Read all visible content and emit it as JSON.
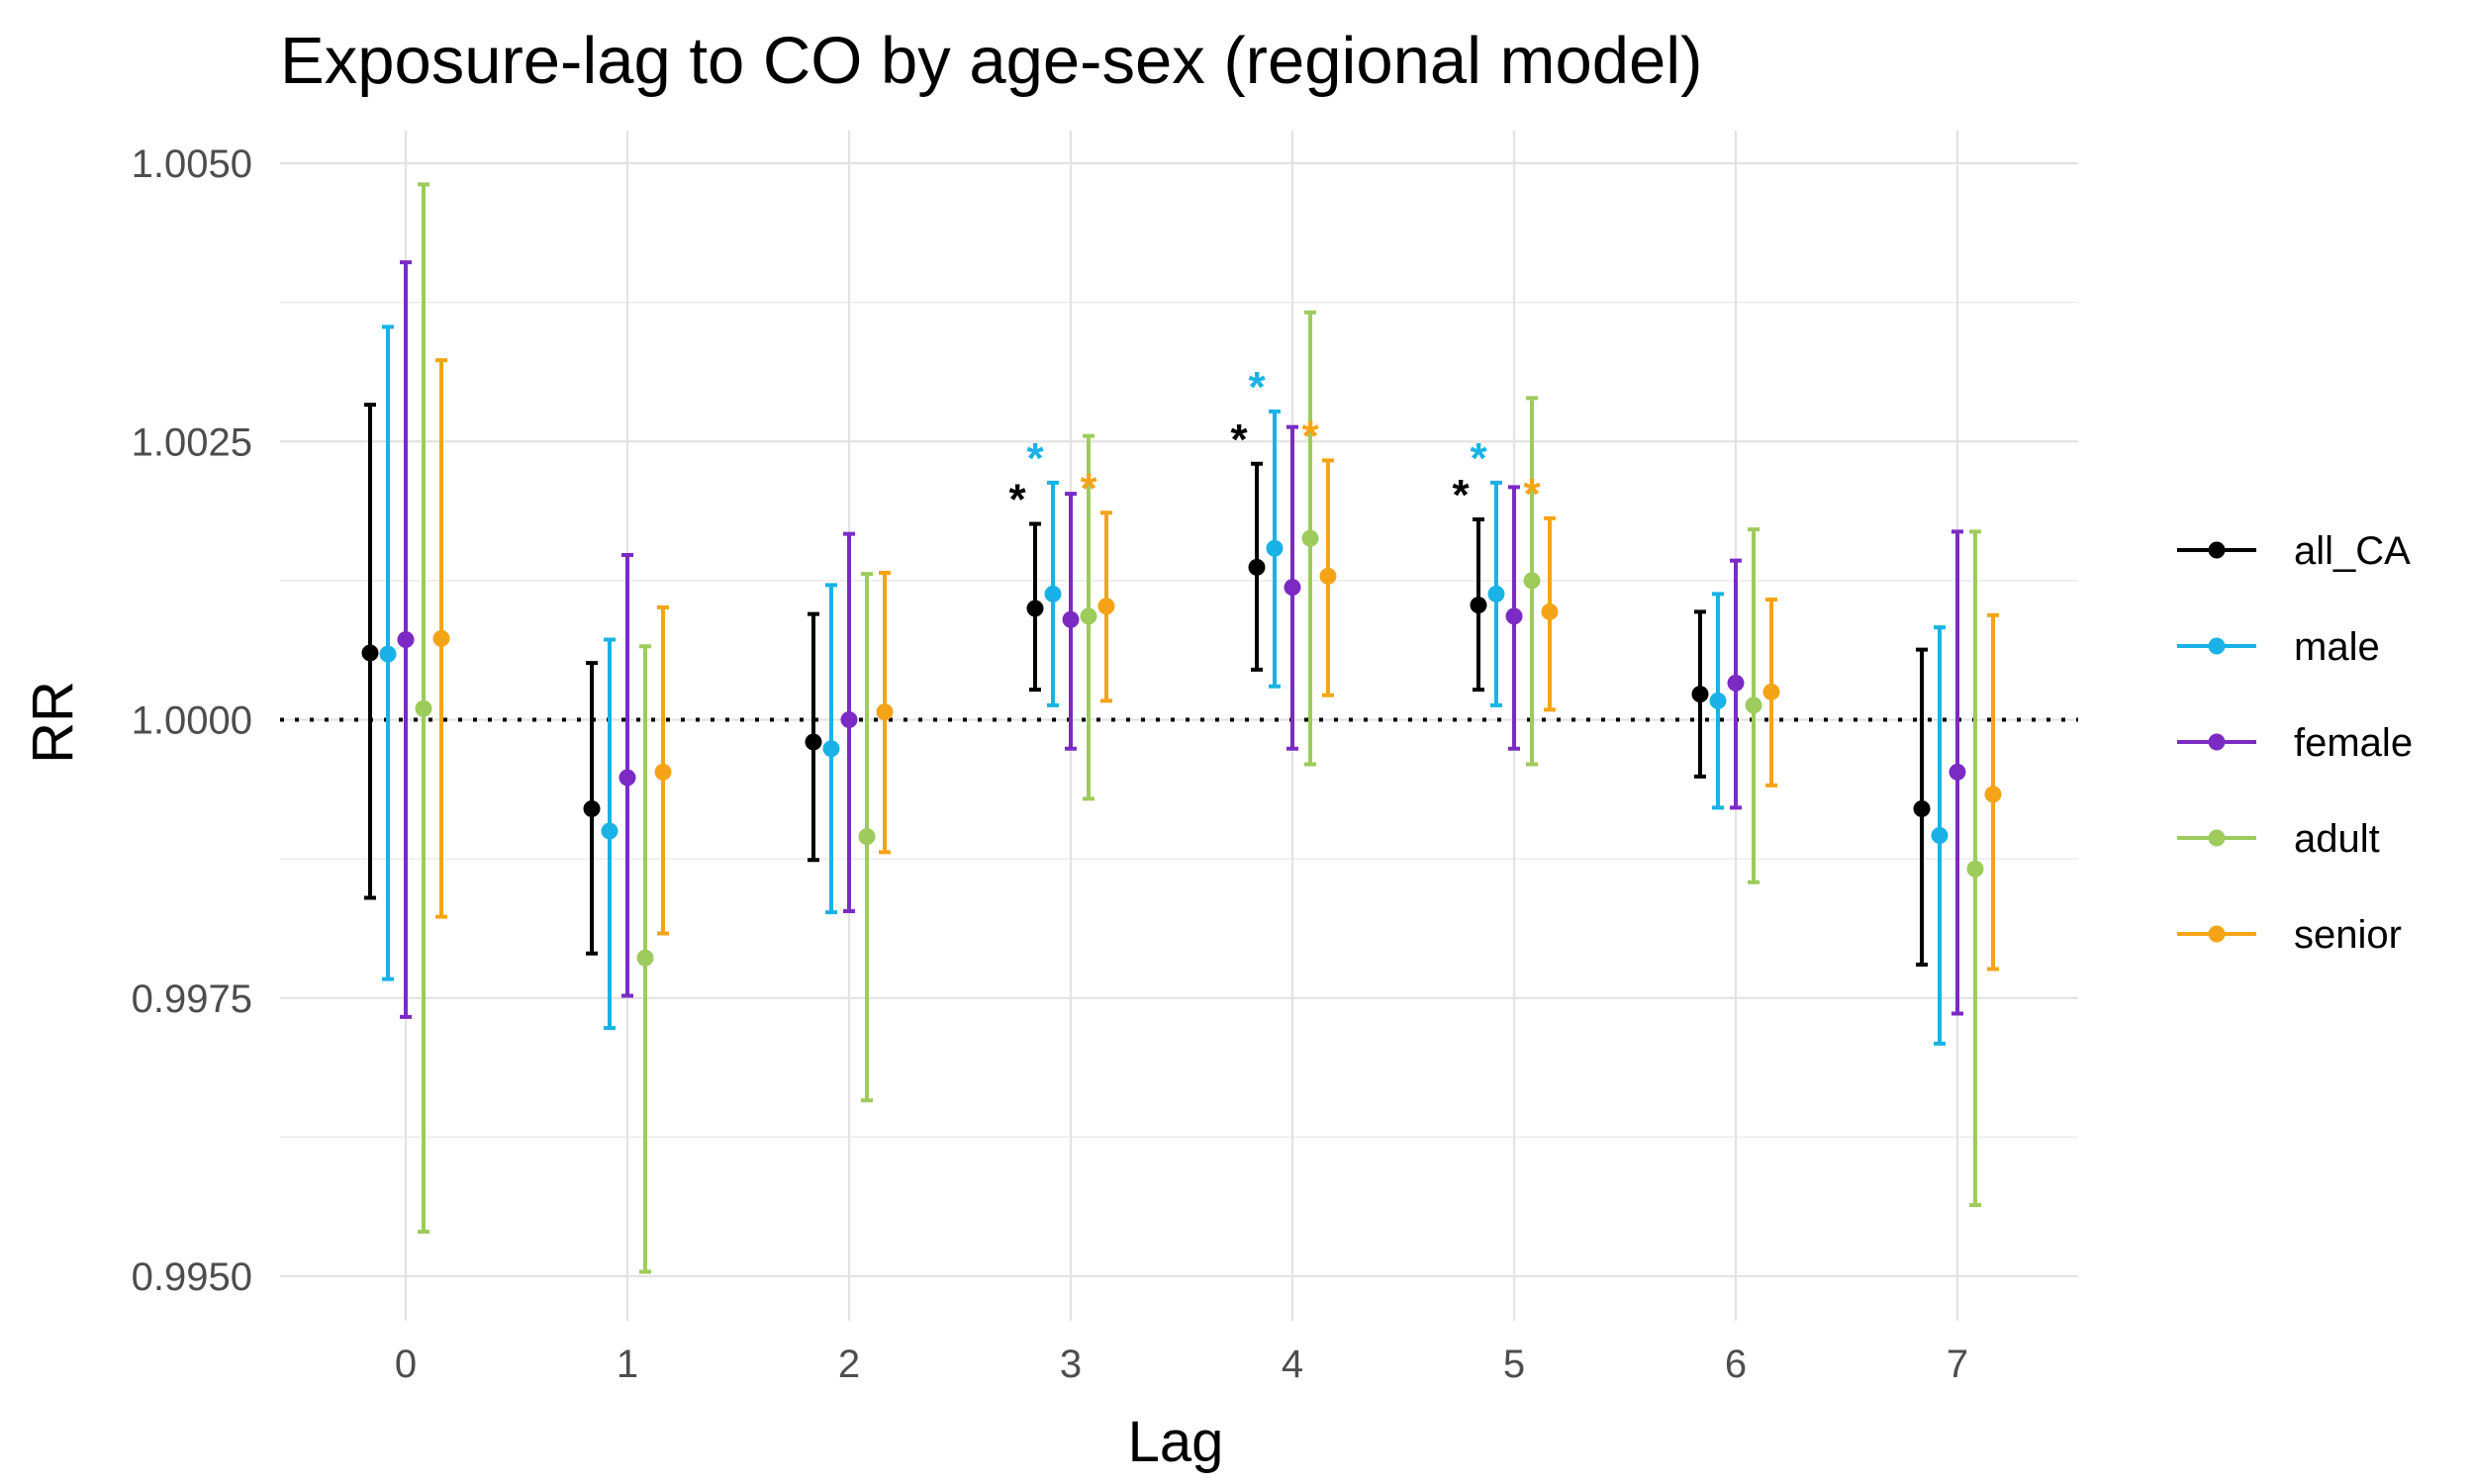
{
  "chart_data": {
    "type": "scatter",
    "subtype": "point-range",
    "title": "Exposure-lag to CO by age-sex (regional model)",
    "xlabel": "Lag",
    "ylabel": "RR",
    "categories": [
      "0",
      "1",
      "2",
      "3",
      "4",
      "5",
      "6",
      "7"
    ],
    "ylim": [
      0.9943,
      1.0052
    ],
    "yticks": [
      0.995,
      0.9975,
      1.0,
      1.0025,
      1.005
    ],
    "ytick_labels": [
      "0.9950",
      "0.9975",
      "1.0000",
      "1.0025",
      "1.0050"
    ],
    "reference_line": 1.0,
    "grid": true,
    "legend_position": "right",
    "significance_marker": "*",
    "series": [
      {
        "name": "all_CA",
        "color": "#000000",
        "values": [
          1.0006,
          0.9992,
          0.9998,
          1.001,
          1.00137,
          1.00103,
          1.00023,
          0.9992
        ],
        "lower": [
          0.9984,
          0.9979,
          0.99874,
          1.00027,
          1.00045,
          1.00027,
          0.99949,
          0.9978
        ],
        "upper": [
          1.00283,
          1.00051,
          1.00095,
          1.00176,
          1.0023,
          1.0018,
          1.00097,
          1.00063
        ],
        "significant": [
          false,
          false,
          false,
          true,
          true,
          true,
          false,
          false
        ]
      },
      {
        "name": "male",
        "color": "#1ab2e6",
        "values": [
          1.00059,
          0.999,
          0.99974,
          1.00113,
          1.00154,
          1.00113,
          1.00017,
          0.99896
        ],
        "lower": [
          0.99767,
          0.99723,
          0.99827,
          1.00013,
          1.0003,
          1.00013,
          0.99921,
          0.99709
        ],
        "upper": [
          1.00353,
          1.00072,
          1.00121,
          1.00213,
          1.00277,
          1.00213,
          1.00113,
          1.00083
        ],
        "significant": [
          false,
          false,
          false,
          true,
          true,
          true,
          false,
          false
        ]
      },
      {
        "name": "female",
        "color": "#7b2bc4",
        "values": [
          1.00072,
          0.99948,
          1.0,
          1.0009,
          1.00119,
          1.00093,
          1.00033,
          0.99953
        ],
        "lower": [
          0.99733,
          0.99752,
          0.99828,
          0.99974,
          0.99974,
          0.99974,
          0.99921,
          0.99736
        ],
        "upper": [
          1.00411,
          1.00148,
          1.00167,
          1.00203,
          1.00263,
          1.00209,
          1.00143,
          1.00169
        ],
        "significant": [
          false,
          false,
          false,
          false,
          false,
          false,
          false,
          false
        ]
      },
      {
        "name": "adult",
        "color": "#9dcb5c",
        "values": [
          1.0001,
          0.99786,
          0.99895,
          1.00093,
          1.00163,
          1.00125,
          1.00013,
          0.99866
        ],
        "lower": [
          0.9954,
          0.99504,
          0.99658,
          0.99929,
          0.9996,
          0.9996,
          0.99854,
          0.99564
        ],
        "upper": [
          1.00481,
          1.00066,
          1.00131,
          1.00255,
          1.00366,
          1.00289,
          1.00171,
          1.00169
        ],
        "significant": [
          false,
          false,
          false,
          false,
          false,
          false,
          false,
          false
        ]
      },
      {
        "name": "senior",
        "color": "#f5a417",
        "values": [
          1.00073,
          0.99953,
          1.00007,
          1.00102,
          1.00129,
          1.00097,
          1.00025,
          0.99933
        ],
        "lower": [
          0.99823,
          0.99808,
          0.99881,
          1.00017,
          1.00022,
          1.00009,
          0.99941,
          0.99776
        ],
        "upper": [
          1.00323,
          1.00101,
          1.00132,
          1.00186,
          1.00233,
          1.00181,
          1.00108,
          1.00094
        ],
        "significant": [
          false,
          false,
          false,
          true,
          true,
          true,
          false,
          false
        ]
      }
    ]
  }
}
